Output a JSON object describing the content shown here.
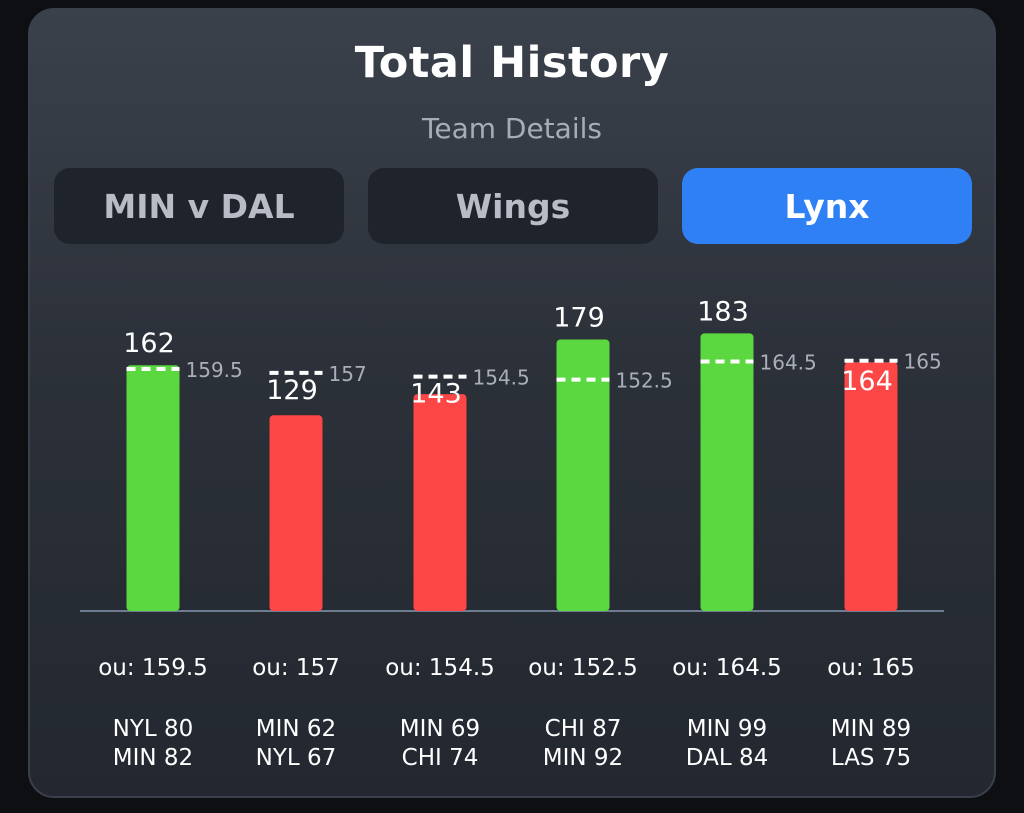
{
  "header": {
    "title": "Total History",
    "subtitle": "Team Details"
  },
  "tabs": [
    {
      "label": "MIN v DAL",
      "active": false
    },
    {
      "label": "Wings",
      "active": false
    },
    {
      "label": "Lynx",
      "active": true
    }
  ],
  "colors": {
    "over": "#5bd83f",
    "under": "#fd4646",
    "active_tab": "#2f80f5",
    "baseline": "#6f7b8f"
  },
  "chart_data": {
    "type": "bar",
    "ylim": [
      0,
      190
    ],
    "bars": [
      {
        "total": 162,
        "line": 159.5,
        "ou_label": "ou: 159.5",
        "result": "over",
        "team1": "NYL 80",
        "team2": "MIN 82"
      },
      {
        "total": 129,
        "line": 157,
        "ou_label": "ou: 157",
        "result": "under",
        "team1": "MIN 62",
        "team2": "NYL 67"
      },
      {
        "total": 143,
        "line": 154.5,
        "ou_label": "ou: 154.5",
        "result": "under",
        "team1": "MIN 69",
        "team2": "CHI 74"
      },
      {
        "total": 179,
        "line": 152.5,
        "ou_label": "ou: 152.5",
        "result": "over",
        "team1": "CHI 87",
        "team2": "MIN 92"
      },
      {
        "total": 183,
        "line": 164.5,
        "ou_label": "ou: 164.5",
        "result": "over",
        "team1": "MIN 99",
        "team2": "DAL 84"
      },
      {
        "total": 164,
        "line": 165,
        "ou_label": "ou: 165",
        "result": "under",
        "team1": "MIN 89",
        "team2": "LAS 75"
      }
    ]
  }
}
